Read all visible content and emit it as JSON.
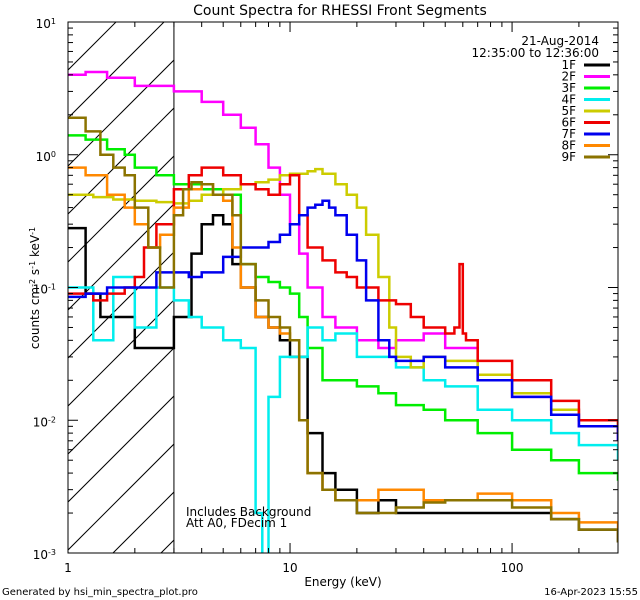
{
  "chart_data": {
    "type": "line",
    "title": "Count Spectra for RHESSI Front Segments",
    "xlabel": "Energy (keV)",
    "ylabel": "counts cm",
    "ylabel_sup1": "-2",
    "ylabel_mid": " s",
    "ylabel_sup2": "-1",
    "ylabel_end": " keV",
    "ylabel_sup3": "-1",
    "x_scale": "log",
    "y_scale": "log",
    "xlim": [
      1,
      300
    ],
    "ylim": [
      0.001,
      10
    ],
    "x_ticks": [
      {
        "value": 1,
        "label": "1"
      },
      {
        "value": 10,
        "label": "10"
      },
      {
        "value": 100,
        "label": "100"
      }
    ],
    "y_ticks": [
      {
        "value": 0.001,
        "base": "10",
        "exp": "-3"
      },
      {
        "value": 0.01,
        "base": "10",
        "exp": "-2"
      },
      {
        "value": 0.1,
        "base": "10",
        "exp": "-1"
      },
      {
        "value": 1,
        "base": "10",
        "exp": "0"
      },
      {
        "value": 10,
        "base": "10",
        "exp": "1"
      }
    ],
    "hatched_region_upper_energy": 3,
    "legend_placement": "top-right",
    "date": "21-Aug-2014",
    "time_range": "12:35:00 to 12:36:00",
    "annotations": [
      "Includes Background",
      "Att A0, FDecim 1"
    ],
    "footer_left": "Generated by hsi_min_spectra_plot.pro",
    "footer_right": "16-Apr-2023 15:55",
    "series": [
      {
        "name": "1F",
        "color": "#000000",
        "x": [
          1.0,
          1.2,
          1.4,
          2.0,
          3.0,
          3.6,
          4.0,
          4.5,
          5.0,
          5.5,
          6.0,
          7.0,
          8.0,
          9.0,
          10.0,
          12.0,
          14.0,
          16.0,
          20.0,
          25.0,
          30.0,
          40.0,
          50.0,
          70.0,
          100.0,
          150.0,
          200.0,
          300.0
        ],
        "y": [
          0.28,
          0.09,
          0.06,
          0.035,
          0.06,
          0.18,
          0.3,
          0.35,
          0.3,
          0.15,
          0.1,
          0.06,
          0.05,
          0.04,
          0.03,
          0.008,
          0.004,
          0.003,
          0.002,
          0.0025,
          0.002,
          0.002,
          0.002,
          0.002,
          0.002,
          0.0018,
          0.0015,
          0.0012
        ]
      },
      {
        "name": "2F",
        "color": "#ff00ff",
        "x": [
          1.0,
          1.2,
          1.5,
          2.0,
          3.0,
          4.0,
          5.0,
          6.0,
          7.0,
          8.0,
          9.0,
          10.0,
          11.0,
          12.0,
          14.0,
          16.0,
          20.0,
          25.0,
          30.0,
          40.0,
          50.0,
          70.0,
          100.0,
          150.0,
          200.0,
          300.0
        ],
        "y": [
          4.0,
          4.2,
          3.8,
          3.3,
          3.0,
          2.5,
          2.0,
          1.6,
          1.2,
          0.8,
          0.5,
          0.3,
          0.18,
          0.1,
          0.06,
          0.05,
          0.04,
          0.035,
          0.04,
          0.045,
          0.035,
          0.02,
          0.015,
          0.012,
          0.009,
          0.007
        ]
      },
      {
        "name": "3F",
        "color": "#00ee00",
        "x": [
          1.0,
          1.2,
          1.5,
          1.8,
          2.0,
          2.5,
          3.0,
          4.0,
          5.0,
          6.0,
          7.0,
          8.0,
          9.0,
          10.0,
          11.0,
          12.0,
          14.0,
          16.0,
          20.0,
          25.0,
          30.0,
          40.0,
          50.0,
          70.0,
          100.0,
          150.0,
          200.0,
          300.0
        ],
        "y": [
          1.4,
          1.3,
          1.1,
          1.0,
          0.8,
          0.7,
          0.6,
          0.55,
          0.5,
          0.15,
          0.12,
          0.11,
          0.1,
          0.09,
          0.06,
          0.035,
          0.02,
          0.02,
          0.018,
          0.016,
          0.013,
          0.012,
          0.01,
          0.008,
          0.006,
          0.005,
          0.004,
          0.0035
        ]
      },
      {
        "name": "4F",
        "color": "#00eeee",
        "x": [
          1.0,
          1.3,
          1.6,
          2.0,
          2.5,
          3.0,
          3.5,
          4.0,
          5.0,
          6.0,
          7.0,
          7.5,
          8.0,
          9.0,
          10.0,
          12.0,
          14.0,
          16.0,
          20.0,
          25.0,
          30.0,
          40.0,
          50.0,
          70.0,
          100.0,
          150.0,
          200.0,
          300.0
        ],
        "y": [
          0.1,
          0.04,
          0.12,
          0.05,
          0.1,
          0.08,
          0.06,
          0.05,
          0.04,
          0.035,
          0.002,
          0.0009,
          0.015,
          0.03,
          0.03,
          0.05,
          0.04,
          0.045,
          0.03,
          0.03,
          0.025,
          0.02,
          0.018,
          0.012,
          0.01,
          0.008,
          0.0065,
          0.005
        ]
      },
      {
        "name": "5F",
        "color": "#cccc00",
        "x": [
          1.0,
          1.3,
          1.6,
          2.0,
          2.5,
          3.0,
          3.5,
          4.0,
          5.0,
          6.0,
          7.0,
          8.0,
          9.0,
          10.0,
          11.0,
          12.0,
          13.0,
          14.0,
          16.0,
          18.0,
          20.0,
          22.0,
          25.0,
          28.0,
          30.0,
          35.0,
          40.0,
          50.0,
          70.0,
          100.0,
          150.0,
          200.0,
          300.0
        ],
        "y": [
          0.5,
          0.48,
          0.46,
          0.45,
          0.44,
          0.43,
          0.45,
          0.5,
          0.55,
          0.6,
          0.62,
          0.65,
          0.7,
          0.72,
          0.72,
          0.75,
          0.78,
          0.72,
          0.6,
          0.5,
          0.4,
          0.25,
          0.12,
          0.05,
          0.03,
          0.025,
          0.03,
          0.028,
          0.022,
          0.016,
          0.012,
          0.01,
          0.009
        ]
      },
      {
        "name": "6F",
        "color": "#ee0000",
        "x": [
          1.0,
          1.3,
          1.5,
          1.8,
          2.0,
          2.2,
          2.5,
          3.0,
          3.5,
          4.0,
          4.5,
          5.0,
          6.0,
          7.0,
          8.0,
          9.0,
          10.0,
          11.0,
          12.0,
          14.0,
          16.0,
          18.0,
          20.0,
          25.0,
          30.0,
          35.0,
          40.0,
          50.0,
          55.0,
          58.0,
          60.0,
          62.0,
          70.0,
          100.0,
          150.0,
          200.0,
          300.0
        ],
        "y": [
          0.09,
          0.08,
          0.09,
          0.1,
          0.12,
          0.2,
          0.3,
          0.55,
          0.7,
          0.8,
          0.8,
          0.7,
          0.6,
          0.55,
          0.5,
          0.6,
          0.7,
          0.35,
          0.2,
          0.16,
          0.13,
          0.12,
          0.1,
          0.08,
          0.075,
          0.06,
          0.05,
          0.045,
          0.05,
          0.15,
          0.045,
          0.04,
          0.028,
          0.02,
          0.014,
          0.01,
          0.008
        ]
      },
      {
        "name": "7F",
        "color": "#0000ee",
        "x": [
          1.0,
          1.2,
          1.5,
          2.0,
          2.5,
          3.0,
          3.5,
          4.0,
          5.0,
          6.0,
          7.0,
          8.0,
          9.0,
          10.0,
          11.0,
          12.0,
          13.0,
          14.0,
          15.0,
          16.0,
          18.0,
          20.0,
          22.0,
          25.0,
          28.0,
          30.0,
          40.0,
          50.0,
          70.0,
          100.0,
          150.0,
          200.0,
          300.0
        ],
        "y": [
          0.085,
          0.09,
          0.1,
          0.1,
          0.13,
          0.13,
          0.12,
          0.13,
          0.17,
          0.2,
          0.2,
          0.22,
          0.25,
          0.3,
          0.35,
          0.4,
          0.42,
          0.45,
          0.4,
          0.35,
          0.25,
          0.16,
          0.08,
          0.04,
          0.03,
          0.028,
          0.03,
          0.025,
          0.02,
          0.015,
          0.011,
          0.009,
          0.007
        ]
      },
      {
        "name": "8F",
        "color": "#ff8800",
        "x": [
          1.0,
          1.2,
          1.5,
          1.8,
          2.0,
          2.3,
          2.6,
          3.0,
          3.5,
          4.0,
          4.5,
          5.0,
          5.5,
          6.0,
          7.0,
          8.0,
          9.0,
          10.0,
          11.0,
          12.0,
          14.0,
          16.0,
          20.0,
          25.0,
          30.0,
          40.0,
          50.0,
          70.0,
          100.0,
          150.0,
          200.0,
          300.0
        ],
        "y": [
          0.8,
          0.7,
          0.5,
          0.4,
          0.3,
          0.2,
          0.25,
          0.4,
          0.55,
          0.6,
          0.5,
          0.45,
          0.2,
          0.1,
          0.06,
          0.05,
          0.045,
          0.04,
          0.01,
          0.004,
          0.003,
          0.0025,
          0.0025,
          0.003,
          0.003,
          0.0025,
          0.0025,
          0.0028,
          0.0025,
          0.002,
          0.0017,
          0.0013
        ]
      },
      {
        "name": "9F",
        "color": "#8b7300",
        "x": [
          1.0,
          1.2,
          1.4,
          1.6,
          1.8,
          2.0,
          2.3,
          2.6,
          3.0,
          3.3,
          3.6,
          4.0,
          4.5,
          5.0,
          5.5,
          6.0,
          7.0,
          8.0,
          9.0,
          10.0,
          11.0,
          12.0,
          14.0,
          16.0,
          20.0,
          25.0,
          30.0,
          40.0,
          50.0,
          70.0,
          100.0,
          150.0,
          200.0,
          300.0
        ],
        "y": [
          1.9,
          1.5,
          1.0,
          0.8,
          0.7,
          0.4,
          0.2,
          0.1,
          0.35,
          0.55,
          0.62,
          0.6,
          0.5,
          0.5,
          0.35,
          0.15,
          0.08,
          0.06,
          0.05,
          0.04,
          0.01,
          0.004,
          0.003,
          0.0025,
          0.002,
          0.002,
          0.0022,
          0.0024,
          0.0025,
          0.0025,
          0.0022,
          0.0018,
          0.0015,
          0.0012
        ]
      }
    ]
  }
}
